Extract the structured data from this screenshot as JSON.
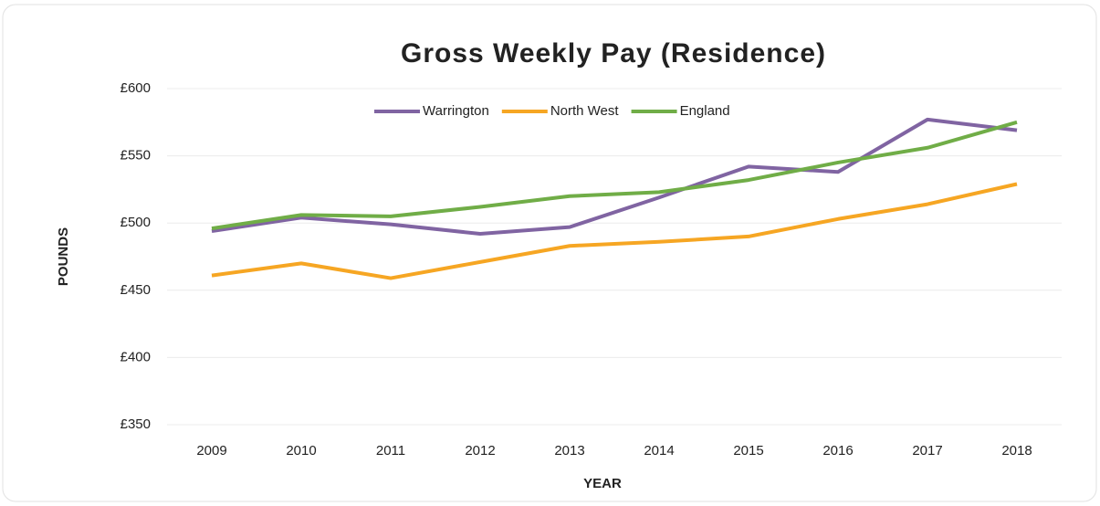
{
  "chart_data": {
    "type": "line",
    "title": "Gross Weekly Pay (Residence)",
    "x_label": "YEAR",
    "y_label": "POUNDS",
    "categories": [
      "2009",
      "2010",
      "2011",
      "2012",
      "2013",
      "2014",
      "2015",
      "2016",
      "2017",
      "2018"
    ],
    "series": [
      {
        "name": "Warrington",
        "color": "#8064a2",
        "values": [
          494,
          504,
          499,
          492,
          497,
          519,
          542,
          538,
          577,
          569
        ]
      },
      {
        "name": "North West",
        "color": "#f6a623",
        "values": [
          461,
          470,
          459,
          471,
          483,
          486,
          490,
          503,
          514,
          529
        ]
      },
      {
        "name": "England",
        "color": "#70ad47",
        "values": [
          496,
          506,
          505,
          512,
          520,
          523,
          532,
          545,
          556,
          575
        ]
      }
    ],
    "ylim": [
      350,
      600
    ],
    "yticks": [
      {
        "value": 350,
        "label": "£350"
      },
      {
        "value": 400,
        "label": "£400"
      },
      {
        "value": 450,
        "label": "£450"
      },
      {
        "value": 500,
        "label": "£500"
      },
      {
        "value": 550,
        "label": "£550"
      },
      {
        "value": 600,
        "label": "£600"
      }
    ],
    "grid": true,
    "legend": "top"
  }
}
